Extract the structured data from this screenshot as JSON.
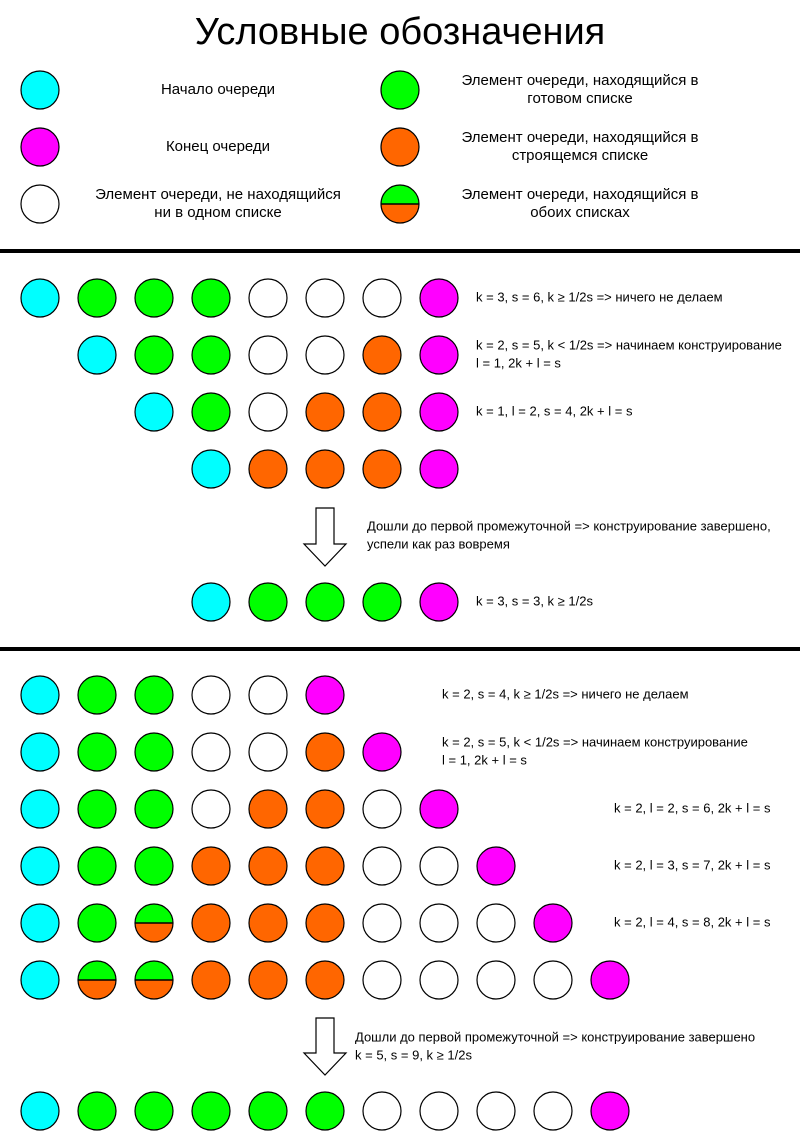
{
  "header": {
    "title": "Условные обозначения"
  },
  "legend": [
    {
      "lines": [
        "Начало очереди"
      ]
    },
    {
      "lines": [
        "Конец очереди"
      ]
    },
    {
      "lines": [
        "Элемент очереди, не находящийся",
        "ни в одном списке"
      ]
    },
    {
      "lines": [
        "Элемент очереди, находящийся в",
        "готовом списке"
      ]
    },
    {
      "lines": [
        "Элемент очереди, находящийся в",
        "строящемся списке"
      ]
    },
    {
      "lines": [
        "Элемент очереди, находящийся в",
        "обоих списках"
      ]
    }
  ],
  "section1": {
    "notes": [
      [
        "k = 3, s = 6, k ≥ 1/2s => ничего не делаем"
      ],
      [
        "k = 2, s = 5, k < 1/2s => начинаем конструирование",
        "l = 1, 2k + l = s"
      ],
      [
        "k = 1, l = 2, s = 4, 2k + l = s"
      ]
    ],
    "transition": [
      "Дошли до первой промежуточной => конструирование завершено,",
      "успели как раз вовремя"
    ],
    "result": [
      "k = 3, s = 3, k ≥ 1/2s"
    ]
  },
  "section2": {
    "notes": [
      [
        "k = 2, s = 4, k ≥ 1/2s => ничего не делаем"
      ],
      [
        "k = 2, s = 5, k < 1/2s => начинаем конструирование",
        "l = 1, 2k + l = s"
      ],
      [
        "k = 2, l = 2, s = 6, 2k + l = s"
      ],
      [
        "k = 2, l = 3, s = 7, 2k + l = s"
      ],
      [
        "k = 2, l = 4, s = 8, 2k + l = s"
      ]
    ],
    "transition": [
      "Дошли до первой промежуточной => конструирование завершено",
      "k = 5, s = 9, k ≥ 1/2s"
    ]
  }
}
